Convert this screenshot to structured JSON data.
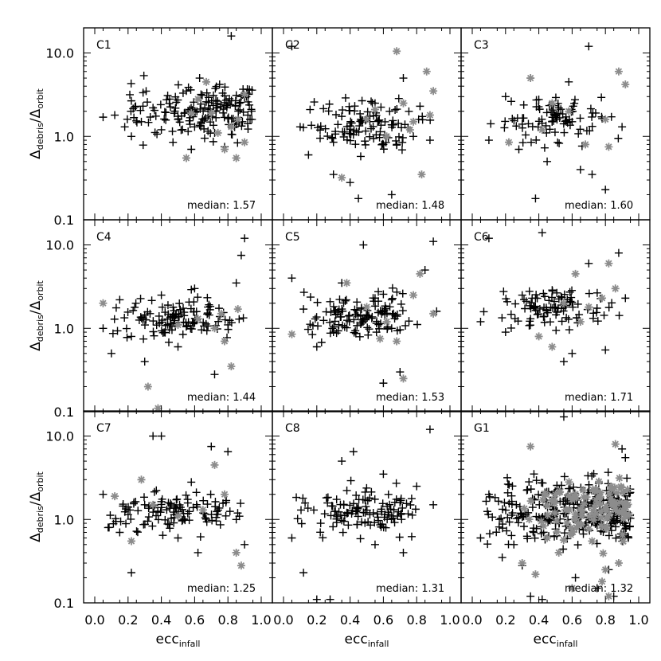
{
  "chart_data": {
    "type": "scatter",
    "layout": "3x3 grid of panels, shared axes",
    "x_axis": {
      "label_main": "ecc",
      "label_sub": "infall",
      "range": [
        0.0,
        1.0
      ],
      "ticks": [
        0.0,
        0.2,
        0.4,
        0.6,
        0.8,
        1.0
      ],
      "tick_labels": [
        "0.0",
        "0.2",
        "0.4",
        "0.6",
        "0.8",
        "1.0"
      ]
    },
    "y_axis": {
      "label_main_left": "Δ",
      "label_sub_left": "debris",
      "label_slash": "/Δ",
      "label_sub_right": "orbit",
      "scale": "log",
      "range": [
        0.1,
        20
      ],
      "ticks": [
        0.1,
        1.0,
        10.0
      ],
      "tick_labels": [
        "0.1",
        "1.0",
        "10.0"
      ]
    },
    "colors": {
      "primary_marker": "#000000",
      "secondary_marker": "#8c8c8c"
    },
    "panels": [
      {
        "label": "C1",
        "median_prefix": "median:",
        "median": "1.57",
        "seed": 11,
        "black_points": [
          [
            0.05,
            1.7
          ],
          [
            0.12,
            1.8
          ],
          [
            0.18,
            1.3
          ],
          [
            0.22,
            1.0
          ],
          [
            0.28,
            1.5
          ],
          [
            0.35,
            2.2
          ],
          [
            0.4,
            1.2
          ],
          [
            0.45,
            2.8
          ],
          [
            0.5,
            1.6
          ],
          [
            0.55,
            3.5
          ],
          [
            0.6,
            1.3
          ],
          [
            0.63,
            5.0
          ],
          [
            0.68,
            2.0
          ],
          [
            0.72,
            1.1
          ],
          [
            0.75,
            4.2
          ],
          [
            0.8,
            2.5
          ],
          [
            0.82,
            16.0
          ],
          [
            0.85,
            1.4
          ],
          [
            0.88,
            3.0
          ],
          [
            0.92,
            1.8
          ],
          [
            0.47,
            0.85
          ],
          [
            0.58,
            0.7
          ],
          [
            0.66,
            0.95
          ],
          [
            0.78,
            0.75
          ]
        ],
        "black_cluster": {
          "count": 160,
          "x": [
            0.15,
            0.95
          ],
          "log10y": [
            -0.15,
            0.75
          ],
          "bias": "right"
        },
        "grey_points": [
          [
            0.55,
            0.55
          ],
          [
            0.62,
            2.8
          ],
          [
            0.7,
            1.9
          ],
          [
            0.78,
            0.7
          ],
          [
            0.85,
            0.55
          ],
          [
            0.9,
            0.85
          ],
          [
            0.67,
            4.5
          ],
          [
            0.82,
            1.3
          ],
          [
            0.74,
            1.1
          ],
          [
            0.9,
            3.2
          ],
          [
            0.58,
            1.9
          ],
          [
            0.86,
            1.6
          ]
        ]
      },
      {
        "label": "C2",
        "median_prefix": "median:",
        "median": "1.48",
        "seed": 23,
        "black_points": [
          [
            0.05,
            12.0
          ],
          [
            0.1,
            1.3
          ],
          [
            0.15,
            0.6
          ],
          [
            0.22,
            0.95
          ],
          [
            0.3,
            0.35
          ],
          [
            0.4,
            0.28
          ],
          [
            0.45,
            0.18
          ],
          [
            0.55,
            2.5
          ],
          [
            0.6,
            0.8
          ],
          [
            0.65,
            0.2
          ],
          [
            0.72,
            5.0
          ],
          [
            0.78,
            1.0
          ],
          [
            0.82,
            2.3
          ],
          [
            0.88,
            0.9
          ]
        ],
        "black_cluster": {
          "count": 110,
          "x": [
            0.1,
            0.92
          ],
          "log10y": [
            -0.3,
            0.6
          ],
          "bias": "mid"
        },
        "grey_points": [
          [
            0.35,
            0.32
          ],
          [
            0.5,
            1.6
          ],
          [
            0.62,
            1.0
          ],
          [
            0.68,
            10.5
          ],
          [
            0.72,
            2.5
          ],
          [
            0.78,
            1.5
          ],
          [
            0.83,
            0.35
          ],
          [
            0.86,
            6.0
          ],
          [
            0.88,
            1.8
          ],
          [
            0.9,
            3.5
          ],
          [
            0.55,
            2.1
          ],
          [
            0.76,
            1.2
          ]
        ]
      },
      {
        "label": "C3",
        "median_prefix": "median:",
        "median": "1.60",
        "seed": 37,
        "black_points": [
          [
            0.1,
            0.9
          ],
          [
            0.2,
            3.0
          ],
          [
            0.28,
            0.7
          ],
          [
            0.38,
            0.18
          ],
          [
            0.45,
            0.5
          ],
          [
            0.52,
            2.2
          ],
          [
            0.6,
            1.5
          ],
          [
            0.65,
            0.4
          ],
          [
            0.7,
            12.0
          ],
          [
            0.72,
            0.35
          ],
          [
            0.8,
            0.23
          ],
          [
            0.9,
            1.3
          ],
          [
            0.3,
            1.4
          ],
          [
            0.58,
            4.5
          ]
        ],
        "black_cluster": {
          "count": 85,
          "x": [
            0.05,
            0.92
          ],
          "log10y": [
            -0.2,
            0.6
          ],
          "bias": "mid"
        },
        "grey_points": [
          [
            0.22,
            0.85
          ],
          [
            0.35,
            5.0
          ],
          [
            0.42,
            1.2
          ],
          [
            0.48,
            2.5
          ],
          [
            0.58,
            2.0
          ],
          [
            0.68,
            0.8
          ],
          [
            0.8,
            1.6
          ],
          [
            0.88,
            6.0
          ],
          [
            0.92,
            4.2
          ],
          [
            0.82,
            0.75
          ]
        ]
      },
      {
        "label": "C4",
        "median_prefix": "median:",
        "median": "1.44",
        "seed": 41,
        "black_points": [
          [
            0.05,
            1.0
          ],
          [
            0.1,
            0.5
          ],
          [
            0.15,
            2.2
          ],
          [
            0.22,
            0.8
          ],
          [
            0.3,
            0.4
          ],
          [
            0.4,
            2.5
          ],
          [
            0.5,
            0.6
          ],
          [
            0.6,
            3.0
          ],
          [
            0.72,
            0.28
          ],
          [
            0.8,
            1.1
          ],
          [
            0.85,
            3.5
          ],
          [
            0.9,
            12.0
          ],
          [
            0.88,
            7.5
          ],
          [
            0.68,
            1.8
          ]
        ],
        "black_cluster": {
          "count": 115,
          "x": [
            0.05,
            0.92
          ],
          "log10y": [
            -0.25,
            0.5
          ],
          "bias": "mid"
        },
        "grey_points": [
          [
            0.05,
            2.0
          ],
          [
            0.32,
            0.2
          ],
          [
            0.38,
            0.11
          ],
          [
            0.5,
            1.1
          ],
          [
            0.62,
            1.3
          ],
          [
            0.72,
            1.0
          ],
          [
            0.78,
            0.7
          ],
          [
            0.82,
            0.35
          ],
          [
            0.86,
            1.7
          ],
          [
            0.76,
            1.5
          ]
        ]
      },
      {
        "label": "C5",
        "median_prefix": "median:",
        "median": "1.53",
        "seed": 53,
        "black_points": [
          [
            0.05,
            4.0
          ],
          [
            0.12,
            1.7
          ],
          [
            0.2,
            0.6
          ],
          [
            0.3,
            0.9
          ],
          [
            0.35,
            3.5
          ],
          [
            0.48,
            10.0
          ],
          [
            0.6,
            0.22
          ],
          [
            0.65,
            1.0
          ],
          [
            0.7,
            0.3
          ],
          [
            0.85,
            5.0
          ],
          [
            0.9,
            11.0
          ],
          [
            0.92,
            1.6
          ],
          [
            0.55,
            2.3
          ]
        ],
        "black_cluster": {
          "count": 120,
          "x": [
            0.05,
            0.92
          ],
          "log10y": [
            -0.25,
            0.55
          ],
          "bias": "mid"
        },
        "grey_points": [
          [
            0.05,
            0.85
          ],
          [
            0.38,
            3.5
          ],
          [
            0.5,
            1.8
          ],
          [
            0.58,
            0.75
          ],
          [
            0.68,
            0.7
          ],
          [
            0.72,
            0.25
          ],
          [
            0.78,
            2.5
          ],
          [
            0.82,
            4.5
          ],
          [
            0.9,
            1.5
          ],
          [
            0.62,
            1.2
          ]
        ]
      },
      {
        "label": "C6",
        "median_prefix": "median:",
        "median": "1.71",
        "seed": 61,
        "black_points": [
          [
            0.05,
            1.2
          ],
          [
            0.1,
            12.0
          ],
          [
            0.2,
            0.9
          ],
          [
            0.3,
            2.5
          ],
          [
            0.42,
            14.0
          ],
          [
            0.5,
            1.8
          ],
          [
            0.55,
            0.4
          ],
          [
            0.6,
            0.5
          ],
          [
            0.7,
            6.0
          ],
          [
            0.8,
            0.55
          ],
          [
            0.88,
            8.0
          ],
          [
            0.92,
            2.3
          ],
          [
            0.35,
            1.3
          ]
        ],
        "black_cluster": {
          "count": 95,
          "x": [
            0.05,
            0.92
          ],
          "log10y": [
            -0.15,
            0.6
          ],
          "bias": "mid"
        },
        "grey_points": [
          [
            0.4,
            0.8
          ],
          [
            0.48,
            0.6
          ],
          [
            0.55,
            2.0
          ],
          [
            0.62,
            4.5
          ],
          [
            0.7,
            1.8
          ],
          [
            0.78,
            2.3
          ],
          [
            0.82,
            6.0
          ],
          [
            0.86,
            3.0
          ],
          [
            0.65,
            1.2
          ]
        ]
      },
      {
        "label": "C7",
        "median_prefix": "median:",
        "median": "1.25",
        "seed": 71,
        "black_points": [
          [
            0.05,
            2.0
          ],
          [
            0.08,
            0.8
          ],
          [
            0.15,
            0.7
          ],
          [
            0.22,
            0.23
          ],
          [
            0.3,
            1.5
          ],
          [
            0.35,
            10.0
          ],
          [
            0.4,
            10.0
          ],
          [
            0.5,
            0.6
          ],
          [
            0.62,
            0.4
          ],
          [
            0.7,
            7.5
          ],
          [
            0.8,
            6.5
          ],
          [
            0.85,
            1.0
          ],
          [
            0.9,
            0.5
          ],
          [
            0.58,
            2.8
          ]
        ],
        "black_cluster": {
          "count": 110,
          "x": [
            0.05,
            0.92
          ],
          "log10y": [
            -0.3,
            0.45
          ],
          "bias": "mid"
        },
        "grey_points": [
          [
            0.12,
            1.9
          ],
          [
            0.22,
            0.55
          ],
          [
            0.28,
            3.0
          ],
          [
            0.35,
            1.5
          ],
          [
            0.5,
            1.1
          ],
          [
            0.72,
            4.5
          ],
          [
            0.78,
            2.0
          ],
          [
            0.85,
            0.4
          ],
          [
            0.88,
            0.28
          ],
          [
            0.65,
            1.3
          ]
        ]
      },
      {
        "label": "C8",
        "median_prefix": "median:",
        "median": "1.31",
        "seed": 83,
        "black_points": [
          [
            0.05,
            0.6
          ],
          [
            0.12,
            0.23
          ],
          [
            0.2,
            0.11
          ],
          [
            0.28,
            0.11
          ],
          [
            0.35,
            5.0
          ],
          [
            0.42,
            6.5
          ],
          [
            0.55,
            0.5
          ],
          [
            0.65,
            1.1
          ],
          [
            0.72,
            0.4
          ],
          [
            0.8,
            2.5
          ],
          [
            0.88,
            12.0
          ],
          [
            0.9,
            1.5
          ],
          [
            0.6,
            3.5
          ]
        ],
        "black_cluster": {
          "count": 120,
          "x": [
            0.05,
            0.92
          ],
          "log10y": [
            -0.3,
            0.5
          ],
          "bias": "mid"
        },
        "grey_points": []
      },
      {
        "label": "G1",
        "median_prefix": "median:",
        "median": "1.32",
        "seed": 97,
        "black_points": [
          [
            0.05,
            0.6
          ],
          [
            0.1,
            2.0
          ],
          [
            0.18,
            0.35
          ],
          [
            0.25,
            0.5
          ],
          [
            0.3,
            0.28
          ],
          [
            0.35,
            0.12
          ],
          [
            0.42,
            0.11
          ],
          [
            0.5,
            0.9
          ],
          [
            0.55,
            17.0
          ],
          [
            0.62,
            0.2
          ],
          [
            0.75,
            0.15
          ],
          [
            0.85,
            0.12
          ],
          [
            0.9,
            7.0
          ],
          [
            0.92,
            5.5
          ],
          [
            0.82,
            0.25
          ]
        ],
        "black_cluster": {
          "count": 320,
          "x": [
            0.05,
            0.95
          ],
          "log10y": [
            -0.45,
            0.65
          ],
          "bias": "right"
        },
        "grey_points": [
          [
            0.35,
            7.5
          ],
          [
            0.3,
            0.3
          ],
          [
            0.38,
            0.22
          ],
          [
            0.45,
            0.6
          ],
          [
            0.52,
            0.4
          ],
          [
            0.6,
            0.15
          ],
          [
            0.72,
            0.55
          ],
          [
            0.78,
            0.18
          ],
          [
            0.82,
            0.12
          ],
          [
            0.8,
            0.25
          ],
          [
            0.88,
            0.3
          ],
          [
            0.86,
            8.0
          ]
        ],
        "grey_cluster": {
          "count": 110,
          "x": [
            0.3,
            0.95
          ],
          "log10y": [
            -0.45,
            0.65
          ],
          "bias": "right"
        }
      }
    ]
  }
}
